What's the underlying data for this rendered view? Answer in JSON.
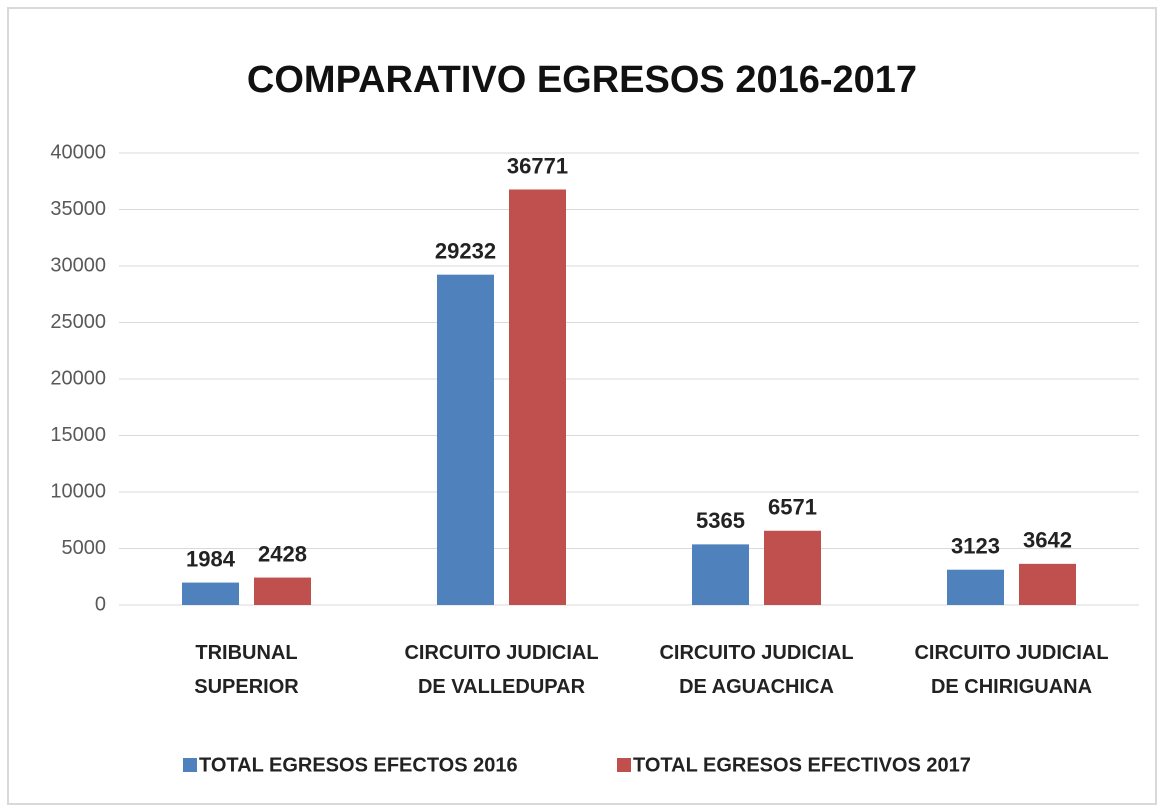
{
  "chart_data": {
    "type": "bar",
    "title": "COMPARATIVO EGRESOS 2016-2017",
    "categories": [
      "TRIBUNAL SUPERIOR",
      "CIRCUITO JUDICIAL DE VALLEDUPAR",
      "CIRCUITO JUDICIAL DE AGUACHICA",
      "CIRCUITO JUDICIAL DE CHIRIGUANA"
    ],
    "series": [
      {
        "name": "TOTAL EGRESOS EFECTOS 2016",
        "color": "#4f81bd",
        "values": [
          1984,
          29232,
          5365,
          3123
        ]
      },
      {
        "name": "TOTAL EGRESOS EFECTIVOS 2017",
        "color": "#c0504d",
        "values": [
          2428,
          36771,
          6571,
          3642
        ]
      }
    ],
    "ylim": [
      0,
      40000
    ],
    "yticks": [
      0,
      5000,
      10000,
      15000,
      20000,
      25000,
      30000,
      35000,
      40000
    ],
    "grid": true,
    "legend": "bottom"
  }
}
